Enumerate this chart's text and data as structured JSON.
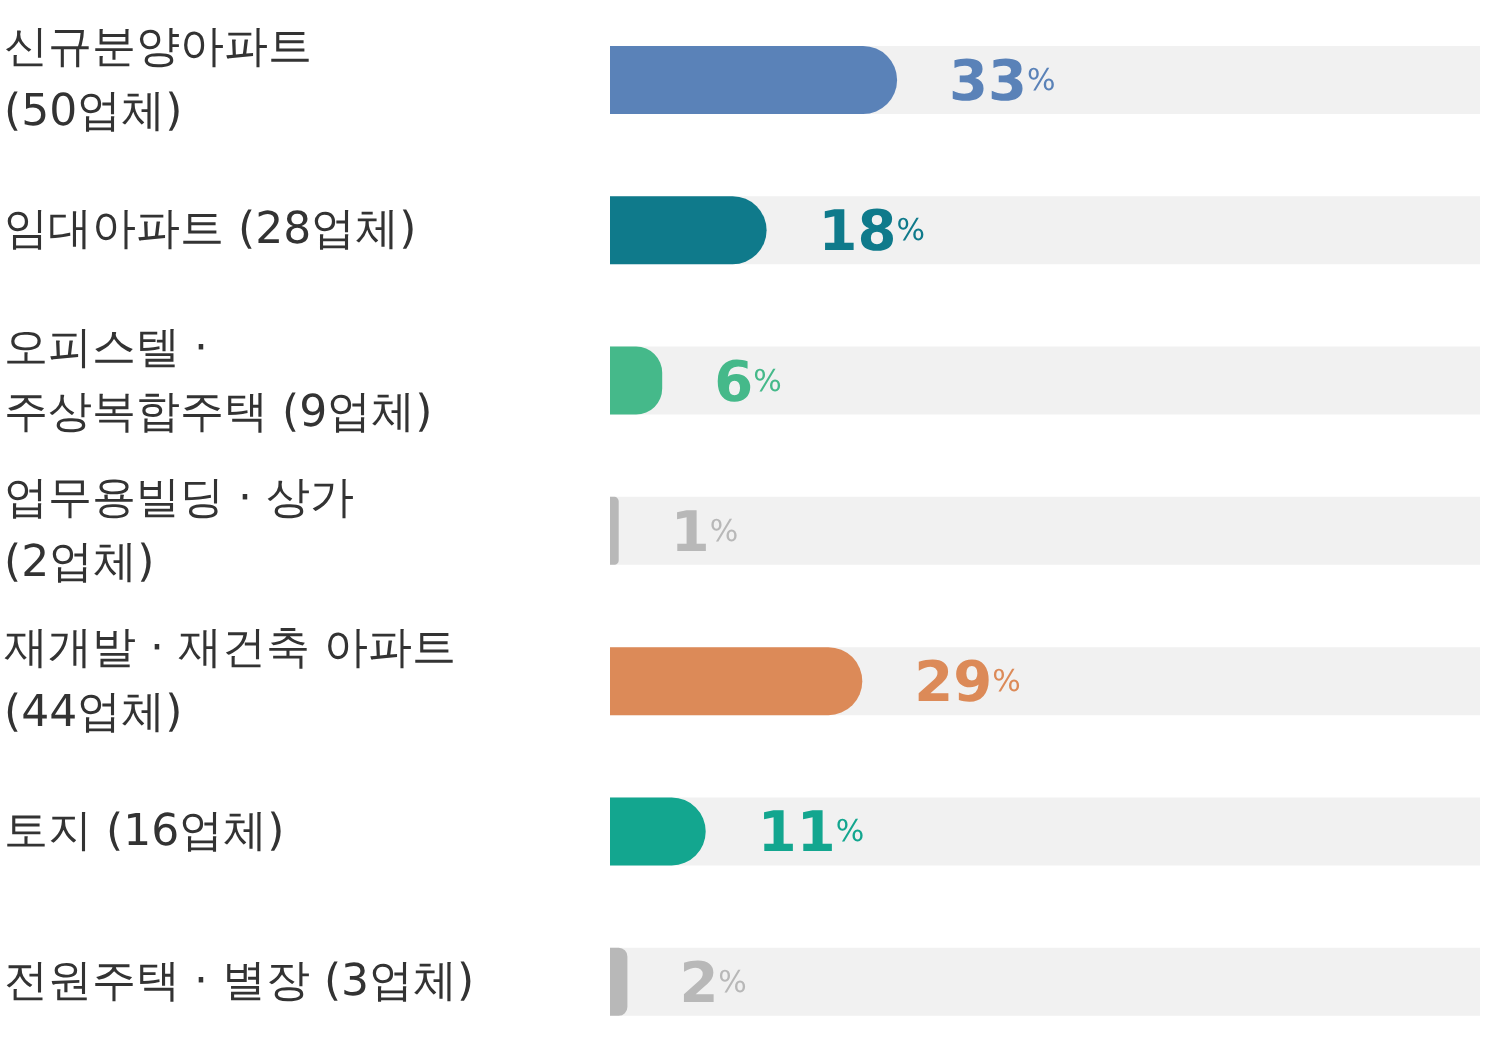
{
  "chart_data": {
    "type": "bar",
    "orientation": "horizontal",
    "categories": [
      "신규분양아파트\n(50업체)",
      "임대아파트 (28업체)",
      "오피스텔 ·\n주상복합주택 (9업체)",
      "업무용빌딩 · 상가\n(2업체)",
      "재개발 · 재건축 아파트\n(44업체)",
      "토지 (16업체)",
      "전원주택 · 별장 (3업체)"
    ],
    "values": [
      33,
      18,
      6,
      1,
      29,
      11,
      2
    ],
    "colors": [
      "#5a82b8",
      "#0f7a8b",
      "#45b98a",
      "#b8b8b8",
      "#dc8a58",
      "#13a68f",
      "#b8b8b8"
    ],
    "value_labels": [
      "33%",
      "18%",
      "6%",
      "1%",
      "29%",
      "11%",
      "2%"
    ],
    "xlim": [
      0,
      100
    ],
    "tick_labels": "y"
  }
}
